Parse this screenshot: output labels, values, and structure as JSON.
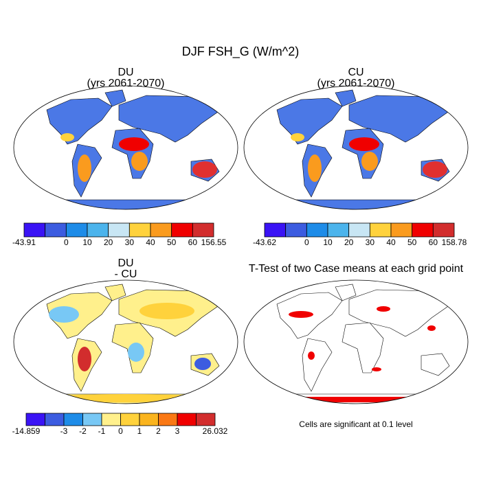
{
  "title": "DJF FSH_G (W/m^2)",
  "panels": [
    {
      "title": [
        "DU",
        "(yrs 2061-2070)"
      ],
      "colorbar": {
        "colors": [
          "#3a13f5",
          "#3c5ce0",
          "#1e8ce8",
          "#4cb4ec",
          "#c8e6f4",
          "#ffd23c",
          "#fa9b1e",
          "#f00000",
          "#d22d2d"
        ],
        "labels": [
          "-43.91",
          null,
          "0",
          "10",
          "20",
          "30",
          "40",
          "50",
          "60",
          "156.55"
        ]
      }
    },
    {
      "title": [
        "CU",
        "(yrs 2061-2070)"
      ],
      "colorbar": {
        "colors": [
          "#3a13f5",
          "#3c5ce0",
          "#1e8ce8",
          "#4cb4ec",
          "#c8e6f4",
          "#ffd23c",
          "#fa9b1e",
          "#f00000",
          "#d22d2d"
        ],
        "labels": [
          "-43.62",
          null,
          "0",
          "10",
          "20",
          "30",
          "40",
          "50",
          "60",
          "158.78"
        ]
      }
    },
    {
      "title": [
        "DU",
        "- CU"
      ],
      "colorbar": {
        "colors": [
          "#3a13f5",
          "#3c5ce0",
          "#1e8ce8",
          "#78c8f5",
          "#fff08c",
          "#ffd23c",
          "#fab41e",
          "#fa7814",
          "#f00000",
          "#d22d2d"
        ],
        "labels": [
          "-14.859",
          null,
          "-3",
          "-2",
          "-1",
          "0",
          "1",
          "2",
          "3",
          null,
          "26.032"
        ]
      }
    },
    {
      "title": [
        "T-Test of two Case means at each grid point"
      ],
      "note": "Cells are significant at 0.1 level"
    }
  ]
}
